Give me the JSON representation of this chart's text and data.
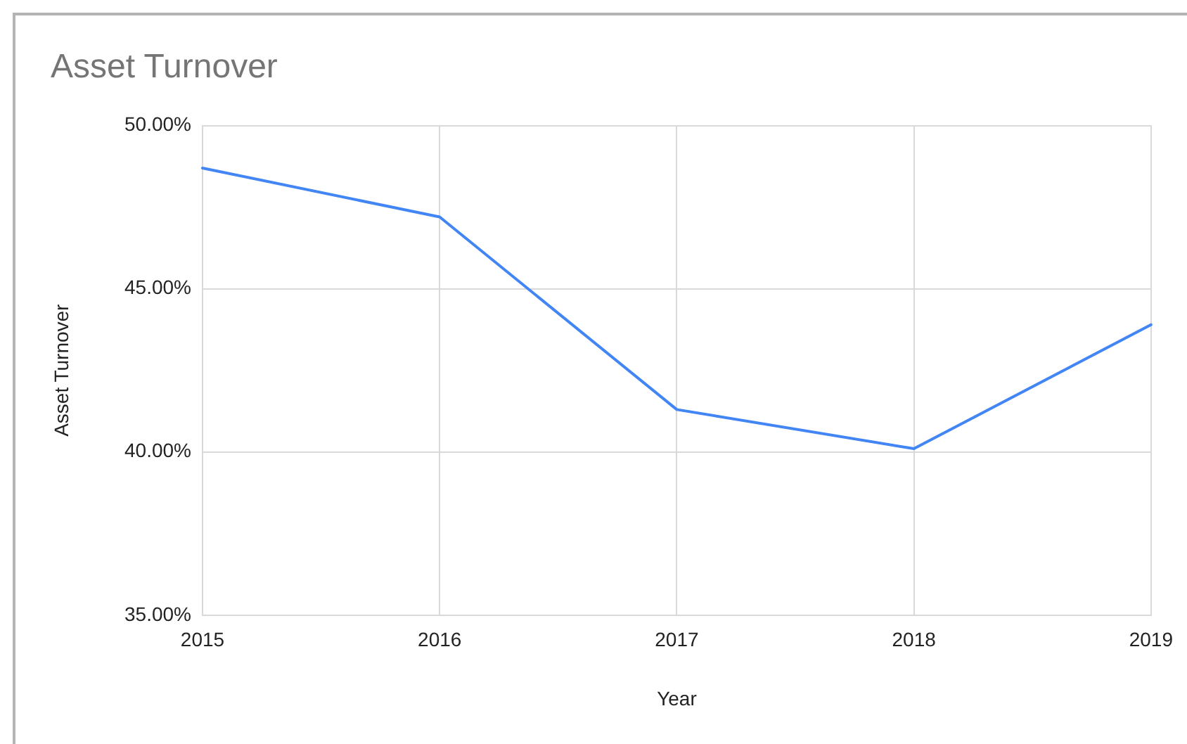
{
  "chart_data": {
    "type": "line",
    "title": "Asset Turnover",
    "xlabel": "Year",
    "ylabel": "Asset Turnover",
    "categories": [
      "2015",
      "2016",
      "2017",
      "2018",
      "2019"
    ],
    "values": [
      48.7,
      47.2,
      41.3,
      40.1,
      43.9
    ],
    "color": "#4285f4",
    "ylim": [
      35,
      50
    ],
    "yticks": [
      {
        "value": 35,
        "label": "35.00%"
      },
      {
        "value": 40,
        "label": "40.00%"
      },
      {
        "value": 45,
        "label": "45.00%"
      },
      {
        "value": 50,
        "label": "50.00%"
      }
    ],
    "grid": true,
    "legend": false
  }
}
